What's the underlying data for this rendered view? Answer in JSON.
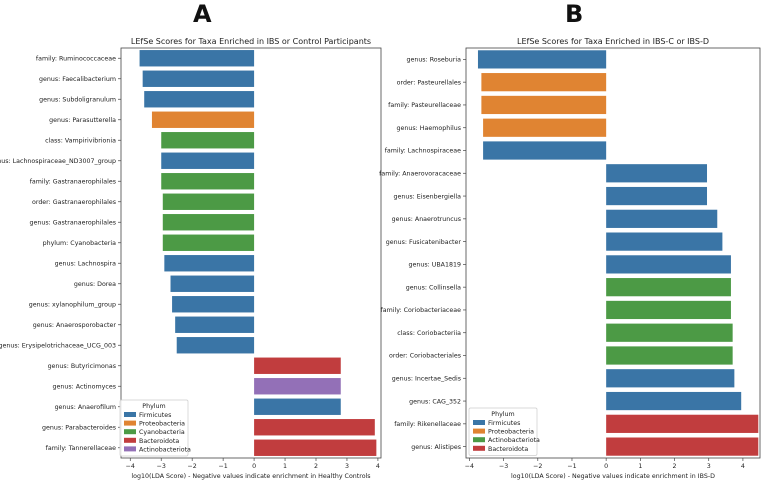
{
  "panels": {
    "left": "A",
    "right": "B"
  },
  "colors": {
    "Firmicutes": "#3a75a6",
    "Proteobacteria": "#e08432",
    "Cyanobacteria": "#4c9a45",
    "Actinobacteriota": "#4c9a45",
    "Bacteroidota": "#c13d3e",
    "Actinobacteriota_A": "#9370b7"
  },
  "chart_data": [
    {
      "type": "bar",
      "orientation": "horizontal",
      "title": "LEfSe Scores for Taxa Enriched in IBS or Control Participants",
      "xlabel": "log10(LDA Score) - Negative values indicate enrichment in Healthy Controls",
      "xlim": [
        -4.3,
        4.1
      ],
      "xticks": [
        -4,
        -3,
        -2,
        -1,
        0,
        1,
        2,
        3,
        4
      ],
      "legend": {
        "title": "Phylum",
        "position": "lower-left",
        "entries": [
          "Firmicutes",
          "Proteobacteria",
          "Cyanobacteria",
          "Bacteroidota",
          "Actinobacteriota"
        ],
        "colors": [
          "#3a75a6",
          "#e08432",
          "#4c9a45",
          "#c13d3e",
          "#9370b7"
        ]
      },
      "bars": [
        {
          "label": "family: Ruminococcaceae",
          "value": -3.7,
          "phylum": "Firmicutes"
        },
        {
          "label": "genus: Faecalibacterium",
          "value": -3.6,
          "phylum": "Firmicutes"
        },
        {
          "label": "genus: Subdoligranulum",
          "value": -3.55,
          "phylum": "Firmicutes"
        },
        {
          "label": "genus: Parasutterella",
          "value": -3.3,
          "phylum": "Proteobacteria"
        },
        {
          "label": "class: Vampirivibrionia",
          "value": -3.0,
          "phylum": "Cyanobacteria"
        },
        {
          "label": "genus: Lachnospiraceae_ND3007_group",
          "value": -3.0,
          "phylum": "Firmicutes"
        },
        {
          "label": "family: Gastranaerophilales",
          "value": -3.0,
          "phylum": "Cyanobacteria"
        },
        {
          "label": "order: Gastranaerophilales",
          "value": -2.95,
          "phylum": "Cyanobacteria"
        },
        {
          "label": "genus: Gastranaerophilales",
          "value": -2.95,
          "phylum": "Cyanobacteria"
        },
        {
          "label": "phylum: Cyanobacteria",
          "value": -2.95,
          "phylum": "Cyanobacteria"
        },
        {
          "label": "genus: Lachnospira",
          "value": -2.9,
          "phylum": "Firmicutes"
        },
        {
          "label": "genus: Dorea",
          "value": -2.7,
          "phylum": "Firmicutes"
        },
        {
          "label": "genus: xylanophilum_group",
          "value": -2.65,
          "phylum": "Firmicutes"
        },
        {
          "label": "genus: Anaerosporobacter",
          "value": -2.55,
          "phylum": "Firmicutes"
        },
        {
          "label": "genus: Erysipelotrichaceae_UCG_003",
          "value": -2.5,
          "phylum": "Firmicutes"
        },
        {
          "label": "genus: Butyricimonas",
          "value": 2.8,
          "phylum": "Bacteroidota"
        },
        {
          "label": "genus: Actinomyces",
          "value": 2.8,
          "phylum": "Actinobacteriota"
        },
        {
          "label": "genus: Anaerofilum",
          "value": 2.8,
          "phylum": "Firmicutes"
        },
        {
          "label": "genus: Parabacteroides",
          "value": 3.9,
          "phylum": "Bacteroidota"
        },
        {
          "label": "family: Tannerellaceae",
          "value": 3.95,
          "phylum": "Bacteroidota"
        }
      ]
    },
    {
      "type": "bar",
      "orientation": "horizontal",
      "title": "LEfSe Scores for Taxa Enriched in IBS-C or IBS-D",
      "xlabel": "log10(LDA Score) - Negative values indicate enrichment in IBS-D",
      "xlim": [
        -4.1,
        4.5
      ],
      "xticks": [
        -4,
        -3,
        -2,
        -1,
        0,
        1,
        2,
        3,
        4
      ],
      "legend": {
        "title": "Phylum",
        "position": "lower-left",
        "entries": [
          "Firmicutes",
          "Proteobacteria",
          "Actinobacteriota",
          "Bacteroidota"
        ],
        "colors": [
          "#3a75a6",
          "#e08432",
          "#4c9a45",
          "#c13d3e"
        ]
      },
      "bars": [
        {
          "label": "genus: Roseburia",
          "value": -3.75,
          "phylum": "Firmicutes"
        },
        {
          "label": "order: Pasteurellales",
          "value": -3.65,
          "phylum": "Proteobacteria"
        },
        {
          "label": "family: Pasteurellaceae",
          "value": -3.65,
          "phylum": "Proteobacteria"
        },
        {
          "label": "genus: Haemophilus",
          "value": -3.6,
          "phylum": "Proteobacteria"
        },
        {
          "label": "family: Lachnospiraceae",
          "value": -3.6,
          "phylum": "Firmicutes"
        },
        {
          "label": "family: Anaerovoracaceae",
          "value": 2.95,
          "phylum": "Firmicutes"
        },
        {
          "label": "genus: Eisenbergiella",
          "value": 2.95,
          "phylum": "Firmicutes"
        },
        {
          "label": "genus: Anaerotruncus",
          "value": 3.25,
          "phylum": "Firmicutes"
        },
        {
          "label": "genus: Fusicatenibacter",
          "value": 3.4,
          "phylum": "Firmicutes"
        },
        {
          "label": "genus: UBA1819",
          "value": 3.65,
          "phylum": "Firmicutes"
        },
        {
          "label": "genus: Collinsella",
          "value": 3.65,
          "phylum": "Actinobacteriota"
        },
        {
          "label": "family: Coriobacteriaceae",
          "value": 3.65,
          "phylum": "Actinobacteriota"
        },
        {
          "label": "class: Coriobacteriia",
          "value": 3.7,
          "phylum": "Actinobacteriota"
        },
        {
          "label": "order: Coriobacteriales",
          "value": 3.7,
          "phylum": "Actinobacteriota"
        },
        {
          "label": "genus: Incertae_Sedis",
          "value": 3.75,
          "phylum": "Firmicutes"
        },
        {
          "label": "genus: CAG_352",
          "value": 3.95,
          "phylum": "Firmicutes"
        },
        {
          "label": "family: Rikenellaceae",
          "value": 4.45,
          "phylum": "Bacteroidota"
        },
        {
          "label": "genus: Alistipes",
          "value": 4.45,
          "phylum": "Bacteroidota"
        }
      ]
    }
  ]
}
